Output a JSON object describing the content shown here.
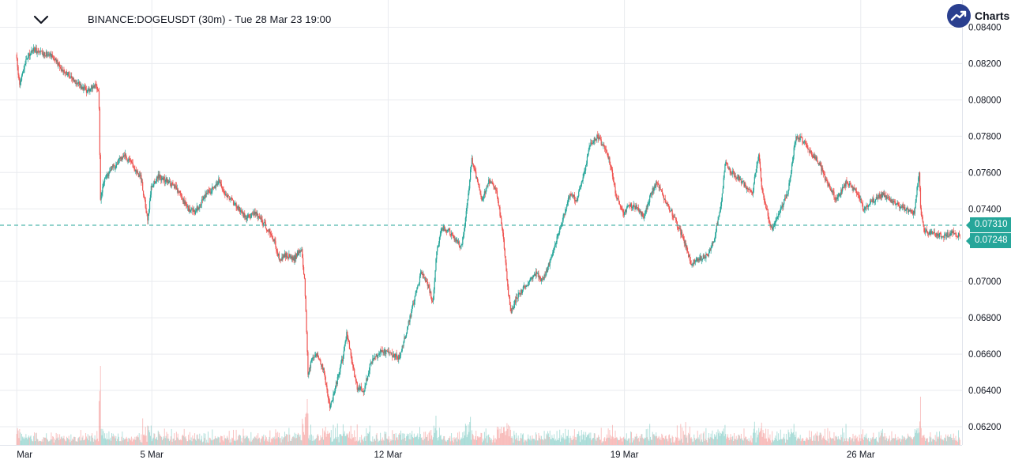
{
  "header": {
    "symbol_title": "BINANCE:DOGEUSDT (30m) - Tue 28 Mar 23 19:00",
    "collapse_icon": "chevron-down-icon",
    "brand_icon": "trend-up-icon",
    "brand_text": "Charts"
  },
  "colors": {
    "up": "#26a69a",
    "down": "#ef5350",
    "grid": "#e9ebef",
    "reference_line": "#26a69a",
    "tag": "#26a69a"
  },
  "price_tags": {
    "reference": "0.07310",
    "last": "0.07248"
  },
  "chart_data": {
    "type": "candlestick",
    "interval": "30m",
    "title": "BINANCE:DOGEUSDT (30m) - Tue 28 Mar 23 19:00",
    "x_tick_labels": [
      "Mar",
      "5 Mar",
      "12 Mar",
      "19 Mar",
      "26 Mar"
    ],
    "x_ticks": [
      {
        "label": "Mar",
        "day": 1.0
      },
      {
        "label": "5 Mar",
        "day": 5.0
      },
      {
        "label": "12 Mar",
        "day": 12.0
      },
      {
        "label": "19 Mar",
        "day": 19.0
      },
      {
        "label": "26 Mar",
        "day": 26.0
      }
    ],
    "x_range_day": [
      0.97,
      29.0
    ],
    "y_tick_labels": [
      "0.08400",
      "0.08200",
      "0.08000",
      "0.07800",
      "0.07600",
      "0.07400",
      "0.07000",
      "0.06800",
      "0.06600",
      "0.06400",
      "0.06200"
    ],
    "ylim": [
      0.061,
      0.0855
    ],
    "reference_price": 0.0731,
    "last_price": 0.07248,
    "grid": true,
    "price_path": [
      [
        1.0,
        0.0825
      ],
      [
        1.1,
        0.0808
      ],
      [
        1.3,
        0.0822
      ],
      [
        1.5,
        0.0828
      ],
      [
        1.8,
        0.0825
      ],
      [
        2.0,
        0.0826
      ],
      [
        2.3,
        0.0818
      ],
      [
        2.6,
        0.0813
      ],
      [
        2.9,
        0.0808
      ],
      [
        3.1,
        0.0805
      ],
      [
        3.3,
        0.0808
      ],
      [
        3.45,
        0.0805
      ],
      [
        3.5,
        0.0745
      ],
      [
        3.6,
        0.0755
      ],
      [
        3.8,
        0.0762
      ],
      [
        4.0,
        0.0765
      ],
      [
        4.2,
        0.077
      ],
      [
        4.4,
        0.0765
      ],
      [
        4.7,
        0.0757
      ],
      [
        4.9,
        0.0733
      ],
      [
        5.0,
        0.0752
      ],
      [
        5.2,
        0.0758
      ],
      [
        5.5,
        0.0755
      ],
      [
        5.8,
        0.075
      ],
      [
        6.1,
        0.074
      ],
      [
        6.3,
        0.0738
      ],
      [
        6.6,
        0.0748
      ],
      [
        6.9,
        0.0752
      ],
      [
        7.0,
        0.0756
      ],
      [
        7.2,
        0.0748
      ],
      [
        7.5,
        0.0742
      ],
      [
        7.8,
        0.0735
      ],
      [
        8.1,
        0.0738
      ],
      [
        8.4,
        0.073
      ],
      [
        8.6,
        0.0725
      ],
      [
        8.8,
        0.0712
      ],
      [
        9.0,
        0.0715
      ],
      [
        9.2,
        0.0712
      ],
      [
        9.45,
        0.0718
      ],
      [
        9.55,
        0.07
      ],
      [
        9.65,
        0.0647
      ],
      [
        9.75,
        0.0658
      ],
      [
        9.9,
        0.066
      ],
      [
        10.1,
        0.0652
      ],
      [
        10.2,
        0.064
      ],
      [
        10.3,
        0.063
      ],
      [
        10.5,
        0.0645
      ],
      [
        10.7,
        0.066
      ],
      [
        10.8,
        0.0672
      ],
      [
        10.95,
        0.0655
      ],
      [
        11.1,
        0.0642
      ],
      [
        11.3,
        0.064
      ],
      [
        11.5,
        0.0655
      ],
      [
        11.8,
        0.0662
      ],
      [
        12.1,
        0.066
      ],
      [
        12.35,
        0.0658
      ],
      [
        12.6,
        0.0675
      ],
      [
        12.8,
        0.069
      ],
      [
        13.0,
        0.0705
      ],
      [
        13.2,
        0.0698
      ],
      [
        13.35,
        0.0688
      ],
      [
        13.45,
        0.0715
      ],
      [
        13.6,
        0.073
      ],
      [
        13.8,
        0.0728
      ],
      [
        14.0,
        0.0724
      ],
      [
        14.2,
        0.0719
      ],
      [
        14.35,
        0.074
      ],
      [
        14.5,
        0.0768
      ],
      [
        14.6,
        0.076
      ],
      [
        14.8,
        0.0745
      ],
      [
        15.0,
        0.0755
      ],
      [
        15.2,
        0.0752
      ],
      [
        15.4,
        0.073
      ],
      [
        15.55,
        0.07
      ],
      [
        15.65,
        0.0682
      ],
      [
        15.8,
        0.069
      ],
      [
        16.1,
        0.0698
      ],
      [
        16.4,
        0.0705
      ],
      [
        16.6,
        0.07
      ],
      [
        16.8,
        0.071
      ],
      [
        17.0,
        0.0722
      ],
      [
        17.2,
        0.0735
      ],
      [
        17.4,
        0.0748
      ],
      [
        17.6,
        0.0745
      ],
      [
        17.8,
        0.0758
      ],
      [
        18.0,
        0.0775
      ],
      [
        18.2,
        0.078
      ],
      [
        18.4,
        0.0775
      ],
      [
        18.6,
        0.0765
      ],
      [
        18.8,
        0.0745
      ],
      [
        19.0,
        0.0738
      ],
      [
        19.2,
        0.0742
      ],
      [
        19.4,
        0.074
      ],
      [
        19.6,
        0.0735
      ],
      [
        19.8,
        0.0748
      ],
      [
        20.0,
        0.0755
      ],
      [
        20.2,
        0.0745
      ],
      [
        20.5,
        0.0735
      ],
      [
        20.8,
        0.0722
      ],
      [
        21.0,
        0.071
      ],
      [
        21.2,
        0.0712
      ],
      [
        21.5,
        0.0715
      ],
      [
        21.7,
        0.0725
      ],
      [
        21.9,
        0.0745
      ],
      [
        22.0,
        0.0765
      ],
      [
        22.2,
        0.076
      ],
      [
        22.5,
        0.0755
      ],
      [
        22.8,
        0.0748
      ],
      [
        23.0,
        0.077
      ],
      [
        23.1,
        0.075
      ],
      [
        23.2,
        0.0742
      ],
      [
        23.4,
        0.0728
      ],
      [
        23.6,
        0.0738
      ],
      [
        23.85,
        0.0748
      ],
      [
        24.1,
        0.078
      ],
      [
        24.3,
        0.0778
      ],
      [
        24.5,
        0.0772
      ],
      [
        24.8,
        0.0765
      ],
      [
        25.0,
        0.0755
      ],
      [
        25.3,
        0.0745
      ],
      [
        25.6,
        0.0755
      ],
      [
        25.9,
        0.075
      ],
      [
        26.1,
        0.074
      ],
      [
        26.4,
        0.0745
      ],
      [
        26.7,
        0.0748
      ],
      [
        27.0,
        0.0743
      ],
      [
        27.3,
        0.074
      ],
      [
        27.6,
        0.0738
      ],
      [
        27.75,
        0.076
      ],
      [
        27.8,
        0.0738
      ],
      [
        27.9,
        0.0728
      ],
      [
        28.2,
        0.0726
      ],
      [
        28.5,
        0.0725
      ],
      [
        28.8,
        0.0727
      ],
      [
        28.95,
        0.0725
      ]
    ]
  }
}
